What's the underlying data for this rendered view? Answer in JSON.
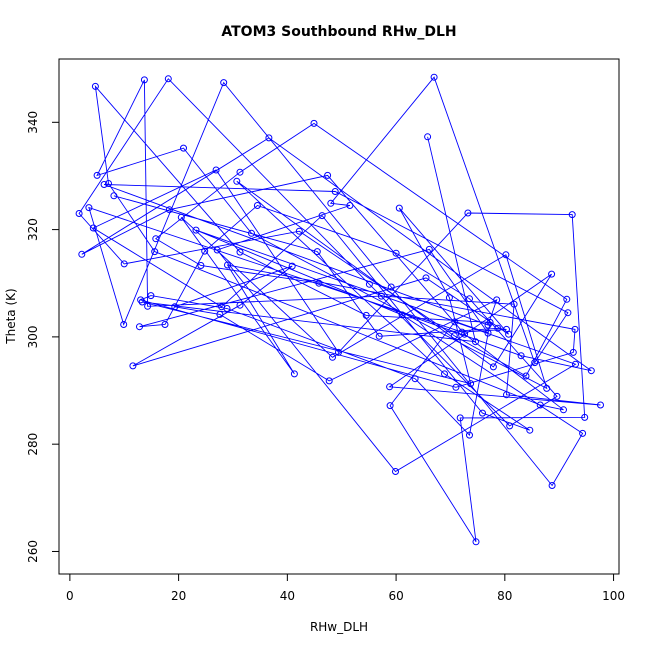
{
  "chart_data": {
    "type": "line",
    "title": "ATOM3 Southbound RHw_DLH",
    "xlabel": "RHw_DLH",
    "ylabel": "Theta (K)",
    "xlim": [
      -2,
      101
    ],
    "ylim": [
      255.8,
      351.8
    ],
    "xticks": [
      0,
      20,
      40,
      60,
      80,
      100
    ],
    "yticks": [
      260,
      280,
      300,
      320,
      340
    ],
    "grid": false,
    "legend": "none",
    "marker": "open-circle",
    "color": "#0000ff",
    "series": [
      {
        "x": [
          8.1,
          45.5,
          56.9,
          78.7,
          80.3,
          72.1,
          3.5,
          9.9,
          28.3,
          59.1,
          88.7,
          94.3,
          61.1,
          23.2,
          76.9,
          66.1,
          12.8,
          17.5,
          24.8,
          34.5,
          60.0,
          73.5,
          89.6,
          80.9,
          55.1,
          18.1,
          1.7,
          10.0,
          42.2,
          70.7,
          83.9,
          91.4,
          44.9,
          31.3,
          15.8,
          24.1,
          45.8,
          83.0,
          95.9,
          36.6,
          2.2,
          18.3,
          47.4,
          72.6,
          90.8,
          86.5,
          15.6,
          7.1,
          4.7,
          31.3,
          54.5,
          77.3,
          73.5,
          63.5,
          28.9,
          14.9,
          13.0,
          71.0,
          92.6,
          92.9,
          29.0,
          41.3,
          20.5,
          48.3,
          80.2,
          87.7,
          33.4,
          20.9,
          5.0,
          13.7,
          14.3,
          57.3,
          81.7,
          80.3,
          97.6,
          58.8,
          88.6,
          77.9,
          30.7,
          68.9,
          84.6,
          75.9,
          46.4,
          27.9,
          4.3,
          26.9,
          49.4,
          73.2,
          92.4,
          94.7,
          71.8,
          74.7,
          58.9,
          70.8,
          93.0,
          59.9,
          27.1,
          51.5,
          48.0,
          67.0,
          85.5,
          91.6,
          48.8,
          6.3,
          76.9,
          78.5,
          47.7,
          27.6,
          19.3,
          40.9,
          31.3,
          11.6,
          65.5,
          80.7,
          60.6,
          69.8,
          73.7,
          13.3,
          74.6,
          65.8
        ],
        "y": [
          326.3,
          315.9,
          300.1,
          301.6,
          301.4,
          300.9,
          324.1,
          302.3,
          347.4,
          309.3,
          272.3,
          282.0,
          304.1,
          319.9,
          300.7,
          316.3,
          301.9,
          302.3,
          316.0,
          324.5,
          315.6,
          307.1,
          288.9,
          283.4,
          309.8,
          348.1,
          323.0,
          313.6,
          319.7,
          300.2,
          292.7,
          307.0,
          339.8,
          330.7,
          318.3,
          313.3,
          310.0,
          296.5,
          293.7,
          337.1,
          315.4,
          323.7,
          330.1,
          300.5,
          286.4,
          287.3,
          315.9,
          328.6,
          346.7,
          315.8,
          304.0,
          302.7,
          281.7,
          292.2,
          305.3,
          307.7,
          306.9,
          290.6,
          297.1,
          301.4,
          313.4,
          293.1,
          322.3,
          296.2,
          315.3,
          290.4,
          319.3,
          335.2,
          330.1,
          347.9,
          305.7,
          307.6,
          306.1,
          289.2,
          287.3,
          290.7,
          311.7,
          294.4,
          329.0,
          293.1,
          282.6,
          285.8,
          322.6,
          305.6,
          320.3,
          331.1,
          297.1,
          323.1,
          322.8,
          285.0,
          284.9,
          261.8,
          287.2,
          302.8,
          294.9,
          274.9,
          316.2,
          324.5,
          324.9,
          348.4,
          295.2,
          304.5,
          327.1,
          328.4,
          302.2,
          306.9,
          291.8,
          304.2,
          305.6,
          313.2,
          305.9,
          294.6,
          311.0,
          300.5,
          324.0,
          307.3,
          291.3,
          306.5,
          299.1,
          337.3
        ]
      }
    ]
  }
}
